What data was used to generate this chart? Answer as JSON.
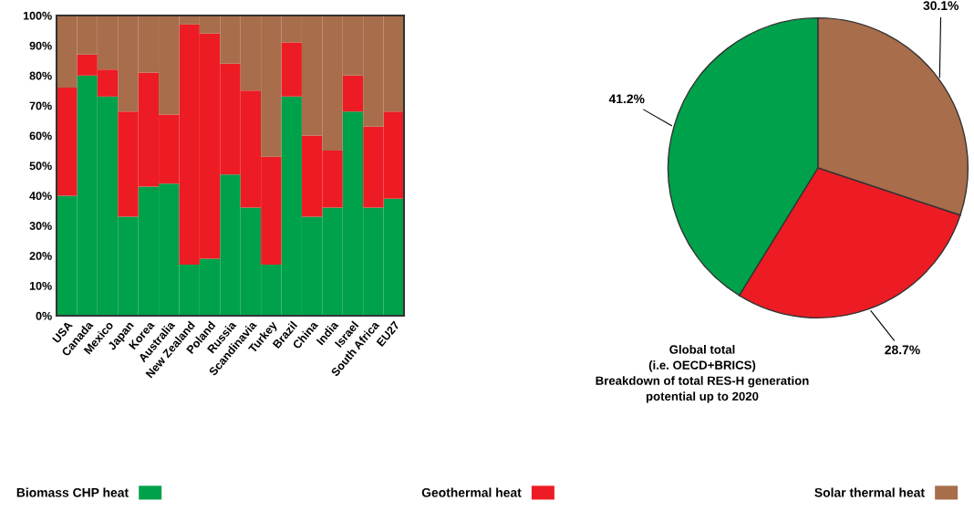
{
  "chart_data": [
    {
      "type": "bar",
      "stacked": true,
      "legend": "bottom",
      "categories": [
        "USA",
        "Canada",
        "Mexico",
        "Japan",
        "Korea",
        "Australia",
        "New Zealand",
        "Poland",
        "Russia",
        "Scandinavia",
        "Turkey",
        "Brazil",
        "China",
        "India",
        "Israel",
        "South Africa",
        "EU27"
      ],
      "series": [
        {
          "name": "Biomass CHP heat",
          "color": "#00a14b",
          "values": [
            40,
            80,
            73,
            33,
            43,
            44,
            17,
            19,
            47,
            36,
            17,
            73,
            33,
            36,
            68,
            36,
            39
          ]
        },
        {
          "name": "Geothermal heat",
          "color": "#ed1c24",
          "values": [
            36,
            7,
            9,
            35,
            38,
            23,
            80,
            75,
            37,
            39,
            36,
            18,
            27,
            19,
            12,
            27,
            29
          ]
        },
        {
          "name": "Solar thermal heat",
          "color": "#a86d4b",
          "values": [
            24,
            13,
            18,
            32,
            19,
            33,
            3,
            6,
            16,
            25,
            47,
            9,
            40,
            45,
            20,
            37,
            32
          ]
        }
      ],
      "ylim": [
        0,
        100
      ],
      "yticks": [
        {
          "value": 0,
          "label": "0%"
        },
        {
          "value": 10,
          "label": "10%"
        },
        {
          "value": 20,
          "label": "20%"
        },
        {
          "value": 30,
          "label": "30%"
        },
        {
          "value": 40,
          "label": "40%"
        },
        {
          "value": 50,
          "label": "50%"
        },
        {
          "value": 60,
          "label": "60%"
        },
        {
          "value": 70,
          "label": "70%"
        },
        {
          "value": 80,
          "label": "80%"
        },
        {
          "value": 90,
          "label": "90%"
        },
        {
          "value": 100,
          "label": "100%"
        }
      ],
      "grid": false
    },
    {
      "type": "pie",
      "categories": [
        null,
        null,
        null
      ],
      "values": [
        41.2,
        28.7,
        30.1
      ],
      "colors": [
        "#00a14b",
        "#ed1c24",
        "#a86d4b"
      ],
      "value_labels": [
        "41.2%",
        "28.7%",
        "30.1%"
      ],
      "annotations": [
        "Global total\n(i.e. OECD+BRICS)\nBreakdown of total RES-H generation\npotential up to 2020"
      ]
    }
  ]
}
